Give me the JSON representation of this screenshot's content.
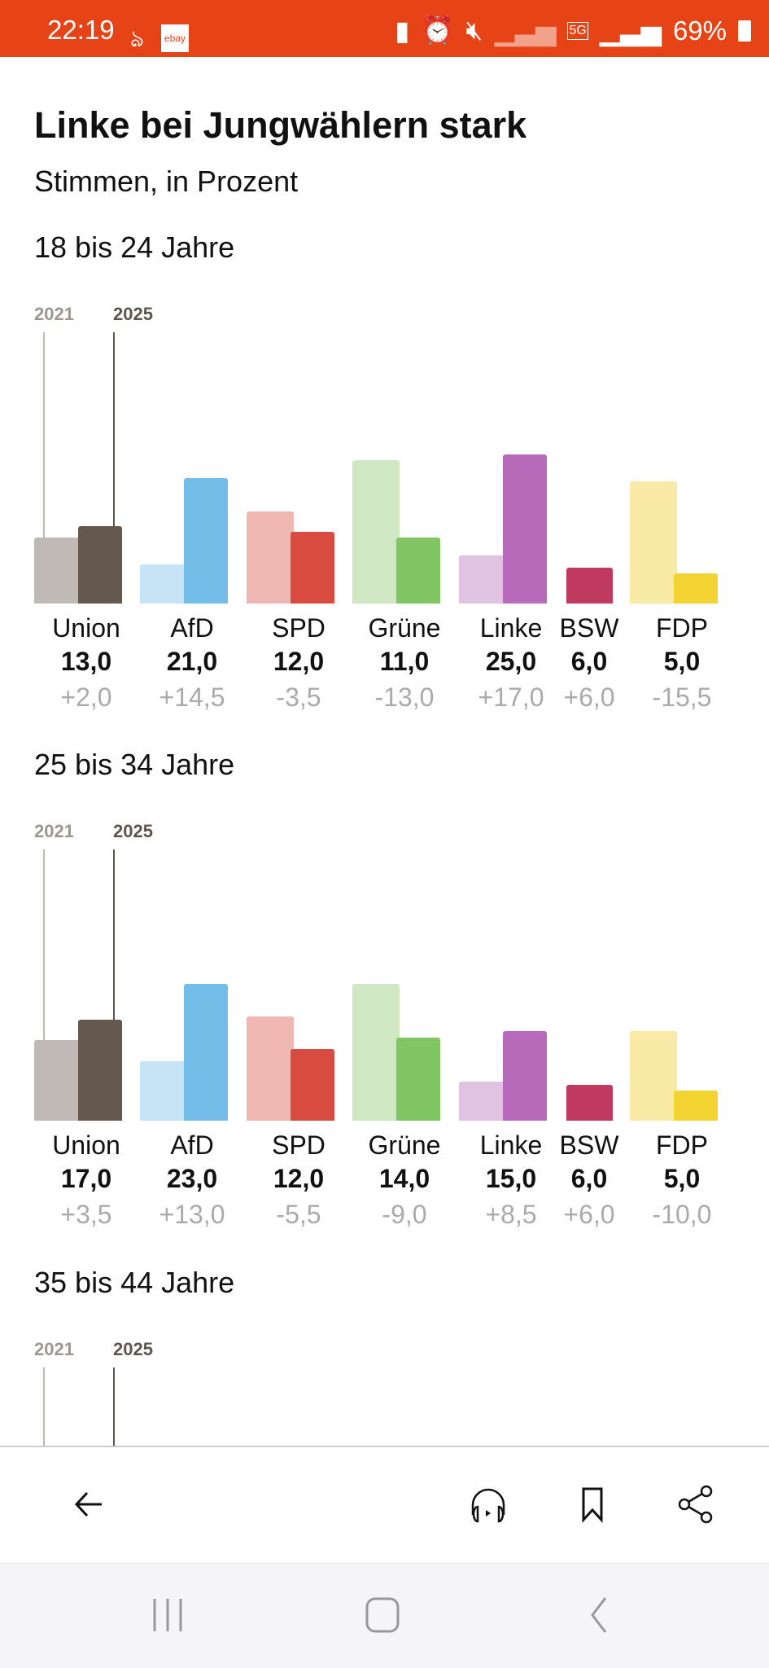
{
  "status_bar": {
    "time": "22:19",
    "app_badge": "ebay",
    "battery": "69%"
  },
  "article": {
    "title": "Linke bei Jungwählern stark",
    "subtitle": "Stimmen, in Prozent"
  },
  "legend": {
    "year_old": "2021",
    "year_new": "2025"
  },
  "colors": {
    "Union": [
      "#bfbab6",
      "#65584e"
    ],
    "AfD": [
      "#c7e4f7",
      "#74bde9"
    ],
    "SPD": [
      "#efb7b1",
      "#d84b40"
    ],
    "Grüne": [
      "#cfe8c3",
      "#82c564"
    ],
    "Linke": [
      "#e0c2e1",
      "#b76ab9"
    ],
    "BSW": [
      "#e8b3c2",
      "#c0395f"
    ],
    "FDP": [
      "#faeaa8",
      "#f2d332"
    ]
  },
  "chart_data": [
    {
      "type": "bar",
      "title": "18 bis 24 Jahre",
      "unit": "Prozent",
      "categories": [
        "Union",
        "AfD",
        "SPD",
        "Grüne",
        "Linke",
        "BSW",
        "FDP"
      ],
      "series": [
        {
          "name": "2021",
          "values": [
            11.0,
            6.5,
            15.5,
            24.0,
            8.0,
            0,
            20.5
          ]
        },
        {
          "name": "2025",
          "values": [
            13.0,
            21.0,
            12.0,
            11.0,
            25.0,
            6.0,
            5.0
          ]
        }
      ],
      "value_labels": [
        "13,0",
        "21,0",
        "12,0",
        "11,0",
        "25,0",
        "6,0",
        "5,0"
      ],
      "change_labels": [
        "+2,0",
        "+14,5",
        "-3,5",
        "-13,0",
        "+17,0",
        "+6,0",
        "-15,5"
      ]
    },
    {
      "type": "bar",
      "title": "25 bis 34 Jahre",
      "unit": "Prozent",
      "categories": [
        "Union",
        "AfD",
        "SPD",
        "Grüne",
        "Linke",
        "BSW",
        "FDP"
      ],
      "series": [
        {
          "name": "2021",
          "values": [
            13.5,
            10.0,
            17.5,
            23.0,
            6.5,
            0,
            15.0
          ]
        },
        {
          "name": "2025",
          "values": [
            17.0,
            23.0,
            12.0,
            14.0,
            15.0,
            6.0,
            5.0
          ]
        }
      ],
      "value_labels": [
        "17,0",
        "23,0",
        "12,0",
        "14,0",
        "15,0",
        "6,0",
        "5,0"
      ],
      "change_labels": [
        "+3,5",
        "+13,0",
        "-5,5",
        "-9,0",
        "+8,5",
        "+6,0",
        "-10,0"
      ]
    },
    {
      "type": "bar",
      "title": "35 bis 44 Jahre",
      "unit": "Prozent",
      "categories": [],
      "series": []
    }
  ],
  "footer": {
    "back": "back-icon",
    "listen": "headphones-icon",
    "bookmark": "bookmark-icon",
    "share": "share-icon"
  }
}
